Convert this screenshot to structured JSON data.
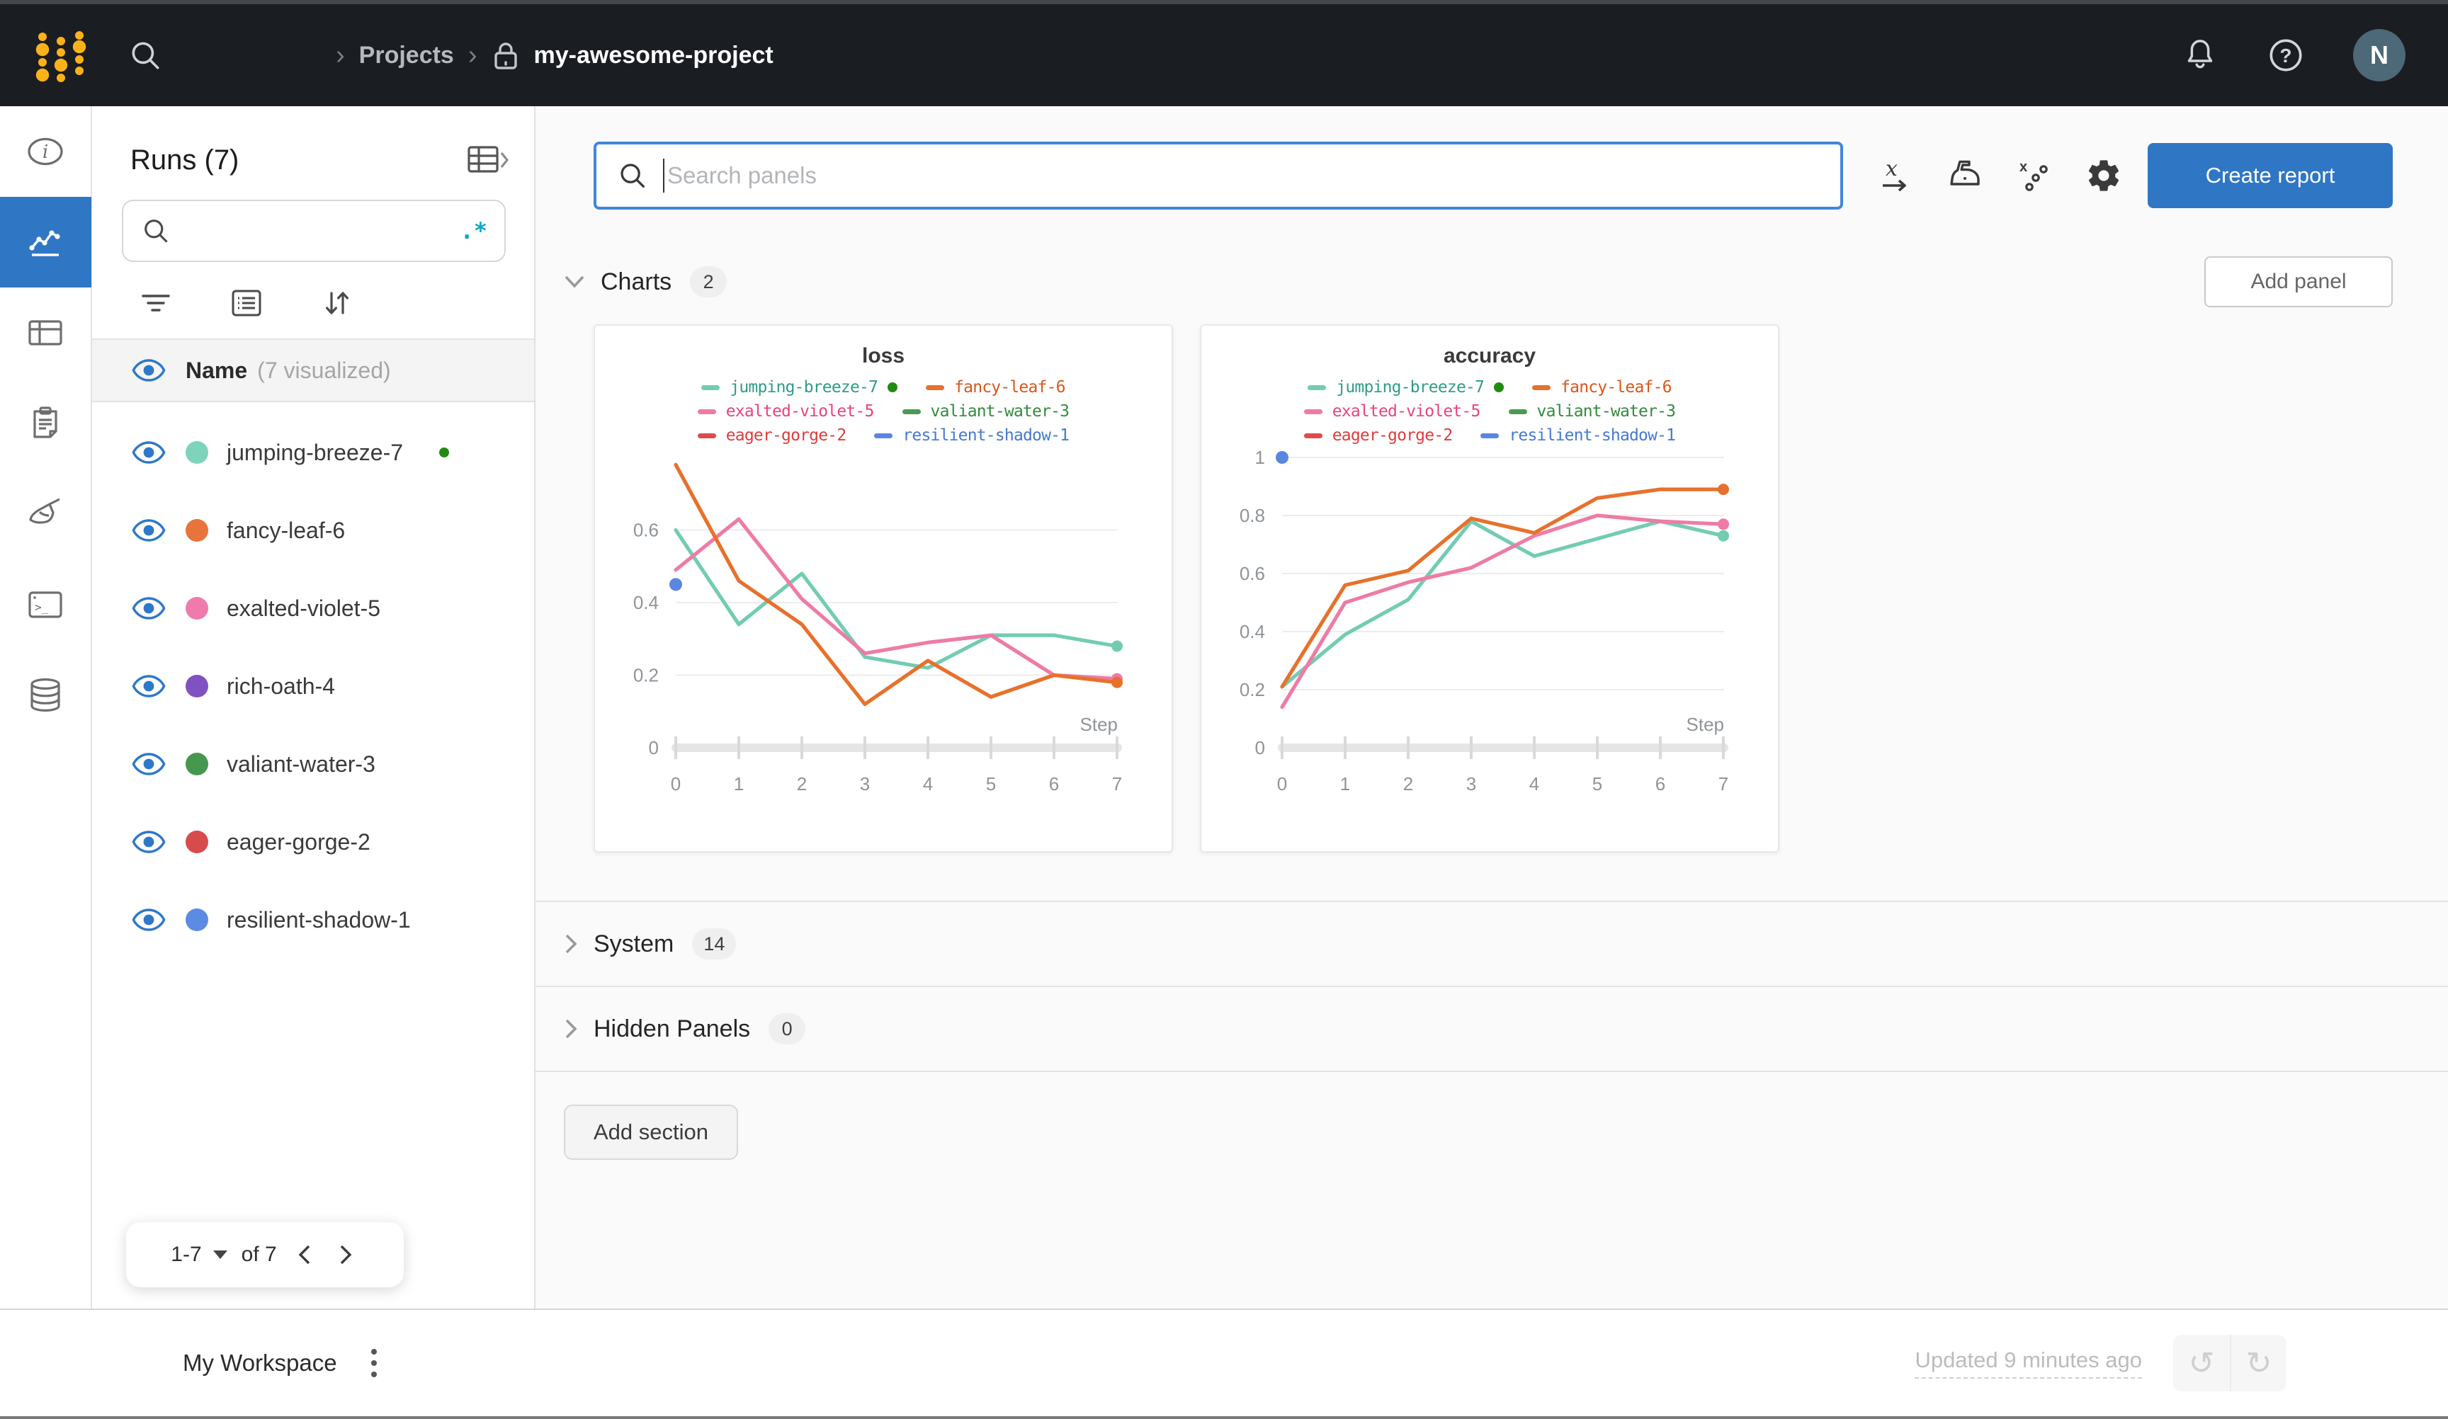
{
  "topbar": {
    "breadcrumb": {
      "sep": "›",
      "projects": "Projects",
      "project": "my-awesome-project"
    },
    "avatar": "N"
  },
  "sidebar": {
    "title": "Runs (7)",
    "regex_badge": ".*",
    "name_header": {
      "label": "Name",
      "visualized": "(7 visualized)"
    },
    "runs": [
      {
        "name": "jumping-breeze-7",
        "color": "#7ed3bb",
        "running": true
      },
      {
        "name": "fancy-leaf-6",
        "color": "#e8743c",
        "running": false
      },
      {
        "name": "exalted-violet-5",
        "color": "#ee7bab",
        "running": false
      },
      {
        "name": "rich-oath-4",
        "color": "#8051c1",
        "running": false
      },
      {
        "name": "valiant-water-3",
        "color": "#46984f",
        "running": false
      },
      {
        "name": "eager-gorge-2",
        "color": "#d84b4d",
        "running": false
      },
      {
        "name": "resilient-shadow-1",
        "color": "#5b8be2",
        "running": false
      }
    ],
    "pagination": {
      "range": "1-7",
      "of": "of 7"
    }
  },
  "toolbar": {
    "search_placeholder": "Search panels",
    "create_report": "Create report"
  },
  "sections": {
    "charts": {
      "label": "Charts",
      "count": "2",
      "add_panel": "Add panel"
    },
    "system": {
      "label": "System",
      "count": "14"
    },
    "hidden": {
      "label": "Hidden Panels",
      "count": "0"
    },
    "add_section": "Add section"
  },
  "footer": {
    "workspace": "My Workspace",
    "updated": "Updated 9 minutes ago"
  },
  "chart_data": [
    {
      "type": "line",
      "title": "loss",
      "xlabel": "Step",
      "xticks": [
        "0",
        "1",
        "2",
        "3",
        "4",
        "5",
        "6",
        "7"
      ],
      "yticks": [
        "0",
        "0.2",
        "0.4",
        "0.6"
      ],
      "ylim": [
        0,
        0.8
      ],
      "x": [
        0,
        1,
        2,
        3,
        4,
        5,
        6,
        7
      ],
      "legend_rows": [
        [
          0,
          2
        ],
        [
          1,
          3
        ],
        [
          4,
          5
        ]
      ],
      "series": [
        {
          "name": "jumping-breeze-7",
          "color": "#72ccb2",
          "text_color": "#2f9c88",
          "running": true,
          "end_dot": true,
          "values": [
            0.6,
            0.34,
            0.48,
            0.25,
            0.22,
            0.31,
            0.31,
            0.28
          ]
        },
        {
          "name": "exalted-violet-5",
          "color": "#ee7ba6",
          "text_color": "#e8447d",
          "end_dot": true,
          "values": [
            0.49,
            0.63,
            0.41,
            0.26,
            0.29,
            0.31,
            0.2,
            0.19
          ]
        },
        {
          "name": "fancy-leaf-6",
          "color": "#e7712c",
          "text_color": "#d8571a",
          "end_dot": true,
          "values": [
            0.78,
            0.46,
            0.34,
            0.12,
            0.24,
            0.14,
            0.2,
            0.18
          ]
        },
        {
          "name": "valiant-water-3",
          "color": "#4e9a53",
          "text_color": "#338a3e"
        },
        {
          "name": "eager-gorge-2",
          "color": "#dd4b4c",
          "text_color": "#e03c3c"
        },
        {
          "name": "resilient-shadow-1",
          "color": "#5a86e0",
          "text_color": "#4579d1",
          "point": [
            0,
            0.45
          ]
        }
      ]
    },
    {
      "type": "line",
      "title": "accuracy",
      "xlabel": "Step",
      "xticks": [
        "0",
        "1",
        "2",
        "3",
        "4",
        "5",
        "6",
        "7"
      ],
      "yticks": [
        "0",
        "0.2",
        "0.4",
        "0.6",
        "0.8",
        "1"
      ],
      "ylim": [
        0,
        1.0
      ],
      "x": [
        0,
        1,
        2,
        3,
        4,
        5,
        6,
        7
      ],
      "legend_rows": [
        [
          0,
          2
        ],
        [
          1,
          3
        ],
        [
          4,
          5
        ]
      ],
      "series": [
        {
          "name": "jumping-breeze-7",
          "color": "#72ccb2",
          "text_color": "#2f9c88",
          "running": true,
          "end_dot": true,
          "values": [
            0.21,
            0.39,
            0.51,
            0.78,
            0.66,
            0.72,
            0.78,
            0.73
          ]
        },
        {
          "name": "exalted-violet-5",
          "color": "#ee7ba6",
          "text_color": "#e8447d",
          "end_dot": true,
          "values": [
            0.14,
            0.5,
            0.57,
            0.62,
            0.73,
            0.8,
            0.78,
            0.77
          ]
        },
        {
          "name": "fancy-leaf-6",
          "color": "#e7712c",
          "text_color": "#d8571a",
          "end_dot": true,
          "values": [
            0.21,
            0.56,
            0.61,
            0.79,
            0.74,
            0.86,
            0.89,
            0.89
          ]
        },
        {
          "name": "valiant-water-3",
          "color": "#4e9a53",
          "text_color": "#338a3e"
        },
        {
          "name": "eager-gorge-2",
          "color": "#dd4b4c",
          "text_color": "#e03c3c"
        },
        {
          "name": "resilient-shadow-1",
          "color": "#5a86e0",
          "text_color": "#4579d1",
          "point": [
            0,
            1.0
          ]
        }
      ]
    }
  ]
}
